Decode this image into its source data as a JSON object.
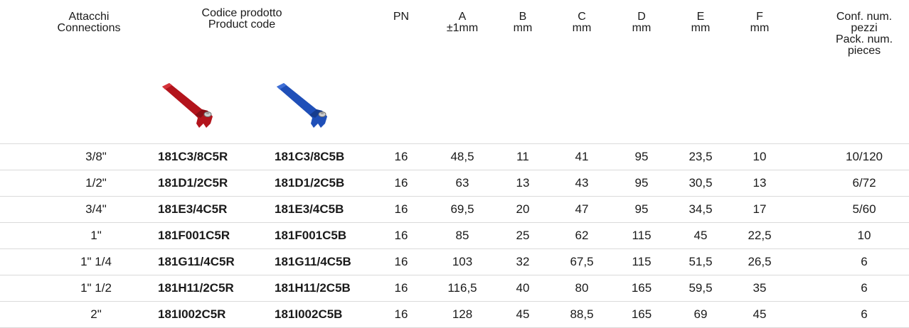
{
  "headers": {
    "connections": [
      "Attacchi",
      "Connections"
    ],
    "product_code": [
      "Codice prodotto",
      "Product code"
    ],
    "pn": "PN",
    "a": [
      "A",
      "±1mm"
    ],
    "b": [
      "B",
      "mm"
    ],
    "c": [
      "C",
      "mm"
    ],
    "d": [
      "D",
      "mm"
    ],
    "e": [
      "E",
      "mm"
    ],
    "f": [
      "F",
      "mm"
    ],
    "pack": [
      "Conf. num.",
      "pezzi",
      "Pack. num.",
      "pieces"
    ]
  },
  "handle_images": [
    {
      "icon": "red-lever-handle-icon",
      "color": "#b3141c"
    },
    {
      "icon": "blue-lever-handle-icon",
      "color": "#1f4fb8"
    }
  ],
  "rows": [
    {
      "conn": "3/8\"",
      "code_r": "181C3/8C5R",
      "code_b": "181C3/8C5B",
      "pn": "16",
      "a": "48,5",
      "b": "11",
      "c": "41",
      "d": "95",
      "e": "23,5",
      "f": "10",
      "pack": "10/120"
    },
    {
      "conn": "1/2\"",
      "code_r": "181D1/2C5R",
      "code_b": "181D1/2C5B",
      "pn": "16",
      "a": "63",
      "b": "13",
      "c": "43",
      "d": "95",
      "e": "30,5",
      "f": "13",
      "pack": "6/72"
    },
    {
      "conn": "3/4\"",
      "code_r": "181E3/4C5R",
      "code_b": "181E3/4C5B",
      "pn": "16",
      "a": "69,5",
      "b": "20",
      "c": "47",
      "d": "95",
      "e": "34,5",
      "f": "17",
      "pack": "5/60"
    },
    {
      "conn": "1\"",
      "code_r": "181F001C5R",
      "code_b": "181F001C5B",
      "pn": "16",
      "a": "85",
      "b": "25",
      "c": "62",
      "d": "115",
      "e": "45",
      "f": "22,5",
      "pack": "10"
    },
    {
      "conn": "1\" 1/4",
      "code_r": "181G11/4C5R",
      "code_b": "181G11/4C5B",
      "pn": "16",
      "a": "103",
      "b": "32",
      "c": "67,5",
      "d": "115",
      "e": "51,5",
      "f": "26,5",
      "pack": "6"
    },
    {
      "conn": "1\" 1/2",
      "code_r": "181H11/2C5R",
      "code_b": "181H11/2C5B",
      "pn": "16",
      "a": "116,5",
      "b": "40",
      "c": "80",
      "d": "165",
      "e": "59,5",
      "f": "35",
      "pack": "6"
    },
    {
      "conn": "2\"",
      "code_r": "181I002C5R",
      "code_b": "181I002C5B",
      "pn": "16",
      "a": "128",
      "b": "45",
      "c": "88,5",
      "d": "165",
      "e": "69",
      "f": "45",
      "pack": "6"
    }
  ]
}
